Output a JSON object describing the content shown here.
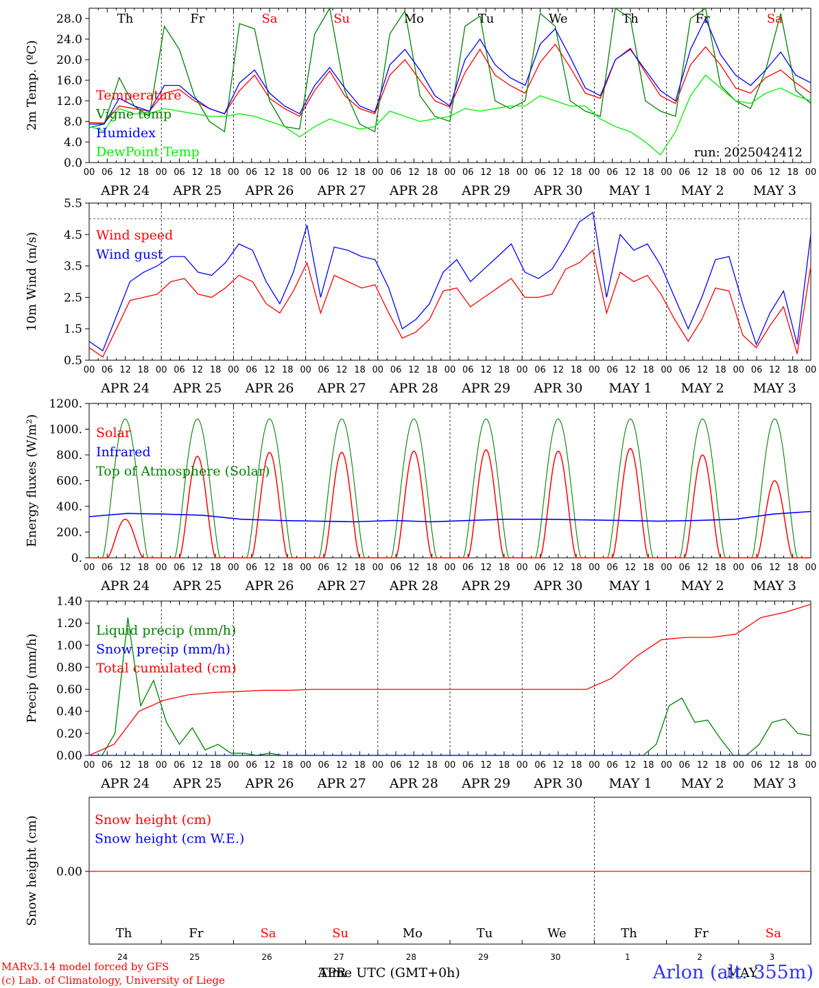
{
  "chart_data": [
    {
      "type": "line",
      "ylabel": "2m Temp. (ºC)",
      "ylim": [
        0,
        30
      ],
      "yticks": [
        "0.0",
        "4.0",
        "8.0",
        "12.0",
        "16.0",
        "20.0",
        "24.0",
        "28.0"
      ],
      "weekdays": [
        "Th",
        "Fr",
        "Sa",
        "Su",
        "Mo",
        "Tu",
        "We",
        "Th",
        "Fr",
        "Sa"
      ],
      "run_label": "run: 2025042412",
      "series": [
        {
          "name": "Temperature",
          "color": "#ff0000",
          "values": [
            7.8,
            7.7,
            11.0,
            10.5,
            10.0,
            13.5,
            14.2,
            12.0,
            10.5,
            9.5,
            14.0,
            17.0,
            12.5,
            10.5,
            9.0,
            14.0,
            17.8,
            13.0,
            10.5,
            9.5,
            17.0,
            20.0,
            16.0,
            12.0,
            10.8,
            17.5,
            22.0,
            17.0,
            15.0,
            13.5,
            19.5,
            23.0,
            18.5,
            13.5,
            12.5,
            20.0,
            22.2,
            17.5,
            13.0,
            11.5,
            19.0,
            22.5,
            19.0,
            14.5,
            13.5,
            16.5,
            18.0,
            15.5,
            13.5
          ]
        },
        {
          "name": "Vigne temp",
          "color": "#008000",
          "values": [
            6.8,
            7.5,
            16.5,
            11.0,
            9.0,
            26.5,
            22.0,
            13.0,
            8.0,
            6.0,
            27.0,
            26.0,
            12.0,
            7.0,
            6.5,
            25.0,
            30.0,
            14.0,
            7.5,
            6.0,
            25.0,
            29.5,
            13.0,
            9.0,
            8.0,
            26.5,
            28.5,
            12.0,
            10.5,
            12.0,
            29.0,
            26.5,
            12.0,
            10.0,
            9.0,
            30.0,
            28.0,
            12.0,
            10.0,
            9.0,
            28.0,
            30.0,
            15.0,
            12.0,
            10.5,
            18.0,
            29.0,
            14.0,
            11.5
          ]
        },
        {
          "name": "Humidex",
          "color": "#0000ff",
          "values": [
            7.5,
            7.5,
            12.5,
            11.0,
            10.0,
            15.0,
            15.0,
            12.5,
            10.5,
            9.5,
            15.5,
            18.0,
            13.5,
            11.0,
            9.5,
            15.0,
            18.5,
            14.5,
            11.0,
            9.8,
            19.0,
            22.0,
            18.0,
            13.0,
            11.0,
            20.0,
            24.0,
            19.0,
            16.5,
            15.0,
            23.0,
            26.0,
            20.5,
            14.5,
            13.0,
            20.0,
            22.0,
            18.0,
            14.0,
            12.0,
            22.0,
            28.0,
            21.0,
            17.0,
            15.0,
            18.0,
            21.5,
            17.0,
            15.5
          ]
        },
        {
          "name": "DewPoint Temp",
          "color": "#00ee00",
          "values": [
            7.0,
            6.2,
            10.5,
            9.5,
            9.5,
            10.5,
            10.0,
            9.5,
            9.0,
            9.0,
            9.5,
            9.0,
            8.0,
            7.0,
            5.0,
            7.0,
            8.5,
            7.5,
            6.5,
            7.0,
            10.0,
            9.0,
            8.0,
            8.5,
            9.0,
            10.5,
            10.0,
            10.5,
            11.0,
            11.0,
            13.0,
            12.0,
            11.0,
            11.0,
            8.5,
            7.0,
            6.0,
            4.0,
            1.5,
            6.0,
            13.0,
            17.0,
            14.5,
            12.0,
            11.5,
            13.5,
            14.5,
            13.0,
            12.0
          ]
        }
      ]
    },
    {
      "type": "line",
      "ylabel": "10m Wind (m/s)",
      "ylim": [
        0.5,
        5.5
      ],
      "yticks": [
        "0.5",
        "1.5",
        "2.5",
        "3.5",
        "4.5",
        "5.5"
      ],
      "reference_line": 5.0,
      "series": [
        {
          "name": "Wind speed",
          "color": "#ff0000",
          "values": [
            0.9,
            0.6,
            1.5,
            2.4,
            2.5,
            2.6,
            3.0,
            3.1,
            2.6,
            2.5,
            2.8,
            3.2,
            3.0,
            2.3,
            2.0,
            2.7,
            3.6,
            2.0,
            3.2,
            3.0,
            2.8,
            2.9,
            2.0,
            1.2,
            1.4,
            1.8,
            2.7,
            2.8,
            2.2,
            2.5,
            2.8,
            3.1,
            2.5,
            2.5,
            2.6,
            3.4,
            3.6,
            4.0,
            2.0,
            3.3,
            3.0,
            3.2,
            2.6,
            1.8,
            1.1,
            1.8,
            2.8,
            2.7,
            1.3,
            0.9,
            1.6,
            2.2,
            0.7,
            3.5
          ]
        },
        {
          "name": "Wind gust",
          "color": "#0000ff",
          "values": [
            1.1,
            0.8,
            1.9,
            3.0,
            3.3,
            3.5,
            3.8,
            3.8,
            3.3,
            3.2,
            3.6,
            4.2,
            4.0,
            3.0,
            2.3,
            3.3,
            4.8,
            2.5,
            4.1,
            4.0,
            3.8,
            3.7,
            2.8,
            1.5,
            1.8,
            2.3,
            3.3,
            3.7,
            3.0,
            3.4,
            3.8,
            4.2,
            3.3,
            3.1,
            3.4,
            4.1,
            4.9,
            5.2,
            2.5,
            4.5,
            4.0,
            4.2,
            3.5,
            2.5,
            1.5,
            2.5,
            3.7,
            3.8,
            2.3,
            1.0,
            2.0,
            2.7,
            1.0,
            4.5
          ]
        }
      ]
    },
    {
      "type": "line",
      "ylabel": "Energy fluxes (W/m²)",
      "ylim": [
        0,
        1200
      ],
      "yticks": [
        "0.",
        "200.",
        "400.",
        "600.",
        "800.",
        "1000.",
        "1200."
      ],
      "series": [
        {
          "name": "Solar",
          "color": "#ff0000",
          "peaks": [
            300,
            790,
            820,
            820,
            830,
            840,
            830,
            850,
            800,
            600
          ]
        },
        {
          "name": "Infrared",
          "color": "#0000ff",
          "values": [
            320,
            345,
            340,
            330,
            300,
            290,
            285,
            280,
            290,
            280,
            290,
            300,
            300,
            295,
            290,
            285,
            290,
            300,
            340,
            360
          ]
        },
        {
          "name": "Top of Atmosphere (Solar)",
          "color": "#008000",
          "peak": 1080
        }
      ]
    },
    {
      "type": "line",
      "ylabel": "Precip (mm/h)",
      "ylim": [
        0,
        1.4
      ],
      "yticks": [
        "0.00",
        "0.20",
        "0.40",
        "0.60",
        "0.80",
        "1.00",
        "1.20",
        "1.40"
      ],
      "series": [
        {
          "name": "Liquid precip (mm/h)",
          "color": "#008000",
          "values": [
            0,
            0,
            0.2,
            1.25,
            0.45,
            0.68,
            0.3,
            0.1,
            0.25,
            0.05,
            0.1,
            0.02,
            0.02,
            0,
            0.02,
            0,
            0,
            0,
            0,
            0,
            0,
            0,
            0,
            0,
            0,
            0,
            0,
            0,
            0,
            0,
            0,
            0,
            0,
            0,
            0,
            0,
            0,
            0,
            0,
            0,
            0,
            0,
            0,
            0,
            0.1,
            0.45,
            0.52,
            0.3,
            0.32,
            0.15,
            0,
            0,
            0.1,
            0.3,
            0.33,
            0.2,
            0.18
          ]
        },
        {
          "name": "Snow precip (mm/h)",
          "color": "#0000ff",
          "values": [
            0,
            0
          ]
        },
        {
          "name": "Total cumulated (cm)",
          "color": "#ff0000",
          "values": [
            0,
            0.1,
            0.4,
            0.5,
            0.55,
            0.57,
            0.58,
            0.59,
            0.59,
            0.6,
            0.6,
            0.6,
            0.6,
            0.6,
            0.6,
            0.6,
            0.6,
            0.6,
            0.6,
            0.6,
            0.6,
            0.7,
            0.9,
            1.05,
            1.07,
            1.07,
            1.1,
            1.25,
            1.3,
            1.37
          ]
        }
      ]
    },
    {
      "type": "line",
      "ylabel": "Snow height (cm)",
      "yticks": [
        "0.00"
      ],
      "series": [
        {
          "name": "Snow height (cm)",
          "color": "#ff0000",
          "values": [
            0,
            0
          ]
        },
        {
          "name": "Snow height (cm W.E.)",
          "color": "#0000ff",
          "values": [
            0,
            0
          ]
        }
      ],
      "weekdays": [
        "Th",
        "Fr",
        "Sa",
        "Su",
        "Mo",
        "Tu",
        "We",
        "Th",
        "Fr",
        "Sa"
      ],
      "day_numbers": [
        "24",
        "25",
        "26",
        "27",
        "28",
        "29",
        "30",
        "1",
        "2",
        "3"
      ],
      "xlabel": "Time UTC (GMT+0h)",
      "month_labels": [
        "APR",
        "MAY"
      ]
    }
  ],
  "x_axis": {
    "hours": [
      "00",
      "06",
      "12",
      "18"
    ],
    "dates": [
      "APR 24",
      "APR 25",
      "APR 26",
      "APR 27",
      "APR 28",
      "APR 29",
      "APR 30",
      "MAY  1",
      "MAY  2",
      "MAY  3"
    ]
  },
  "weekend_color": "#ff0000",
  "footer": {
    "line1": "MARv3.14 model forced by GFS",
    "line2": "(c) Lab. of Climatology, University of Liege",
    "station": "Arlon (alt. 355m)"
  }
}
